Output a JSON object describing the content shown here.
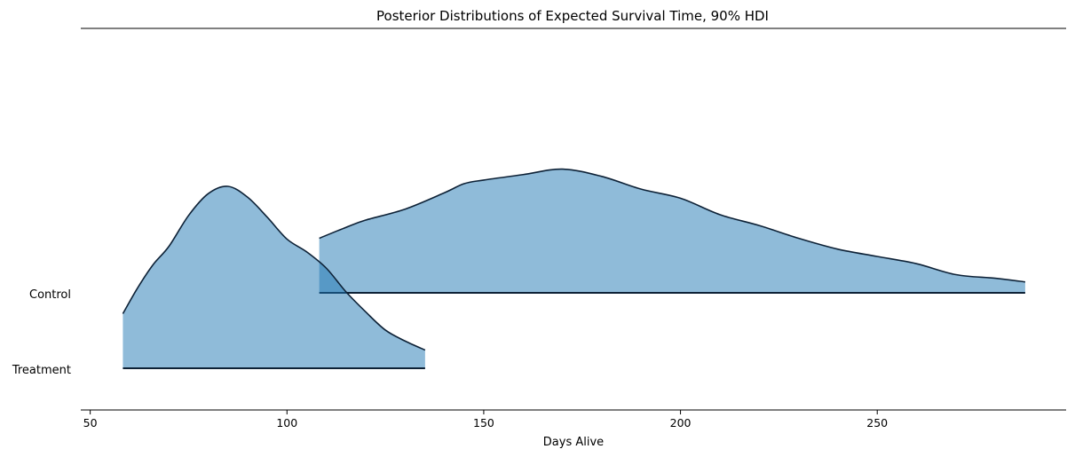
{
  "chart_data": {
    "type": "area",
    "title": "Posterior Distributions of Expected Survival Time, 90% HDI",
    "xlabel": "Days Alive",
    "ylabel": "",
    "xlim": [
      47.6,
      298
    ],
    "x_ticks": [
      50,
      100,
      150,
      200,
      250
    ],
    "x_tick_labels": [
      "50",
      "100",
      "150",
      "200",
      "250"
    ],
    "categories": [
      "Control",
      "Treatment"
    ],
    "fill_color": "#1f77b4",
    "line_color": "#0d2136",
    "series": [
      {
        "name": "Control",
        "x": [
          108.2,
          115,
          120,
          130,
          140,
          145,
          150,
          160,
          170,
          180,
          190,
          200,
          210,
          220,
          230,
          240,
          250,
          260,
          270,
          280,
          287.6
        ],
        "density": [
          0.3,
          0.36,
          0.4,
          0.46,
          0.55,
          0.6,
          0.62,
          0.65,
          0.68,
          0.64,
          0.57,
          0.52,
          0.43,
          0.37,
          0.3,
          0.24,
          0.2,
          0.16,
          0.1,
          0.08,
          0.06
        ]
      },
      {
        "name": "Treatment",
        "x": [
          58.3,
          62,
          66,
          70,
          75,
          80,
          85,
          90,
          95,
          100,
          105,
          110,
          115,
          120,
          125,
          130,
          135.1
        ],
        "density": [
          0.3,
          0.44,
          0.57,
          0.67,
          0.84,
          0.96,
          1.0,
          0.94,
          0.83,
          0.71,
          0.64,
          0.55,
          0.42,
          0.31,
          0.21,
          0.15,
          0.1
        ]
      }
    ]
  }
}
